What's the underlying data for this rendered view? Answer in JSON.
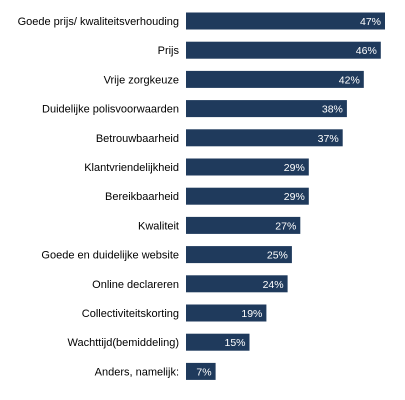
{
  "chart_data": {
    "type": "bar",
    "orientation": "horizontal",
    "categories": [
      "Goede prijs/ kwaliteitsverhouding",
      "Prijs",
      "Vrije zorgkeuze",
      "Duidelijke polisvoorwaarden",
      "Betrouwbaarheid",
      "Klantvriendelijkheid",
      "Bereikbaarheid",
      "Kwaliteit",
      "Goede en duidelijke website",
      "Online declareren",
      "Collectiviteitskorting",
      "Wachttijd(bemiddeling)",
      "Anders, namelijk:"
    ],
    "values": [
      47,
      46,
      42,
      38,
      37,
      29,
      29,
      27,
      25,
      24,
      19,
      15,
      7
    ],
    "value_labels": [
      "47%",
      "46%",
      "42%",
      "38%",
      "37%",
      "29%",
      "29%",
      "27%",
      "25%",
      "24%",
      "19%",
      "15%",
      "7%"
    ],
    "xlim": [
      0,
      47
    ],
    "grid": false,
    "legend": "none",
    "bar_color": "#1f3a5c",
    "value_label_color": "#ffffff",
    "category_label_color": "#000000"
  }
}
